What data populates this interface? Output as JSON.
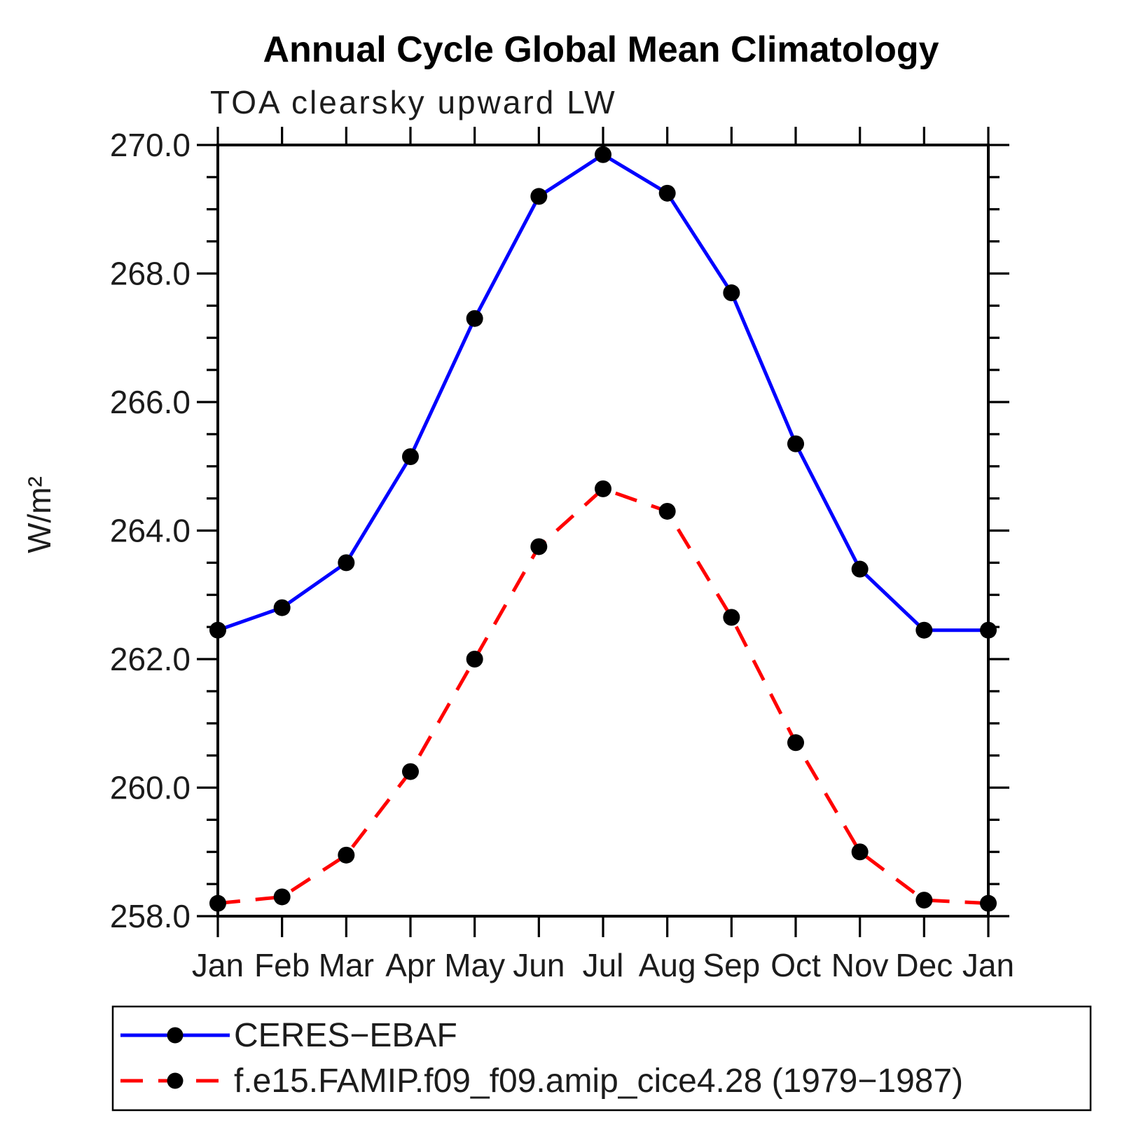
{
  "title": "Annual Cycle Global Mean Climatology",
  "subtitle": "TOA clearsky upward LW",
  "chart_data": {
    "type": "line",
    "x_categories": [
      "Jan",
      "Feb",
      "Mar",
      "Apr",
      "May",
      "Jun",
      "Jul",
      "Aug",
      "Sep",
      "Oct",
      "Nov",
      "Dec",
      "Jan"
    ],
    "xlabel": "",
    "ylabel": "W/m²",
    "ylim": [
      258.0,
      270.0
    ],
    "y_major_ticks": [
      258.0,
      260.0,
      262.0,
      264.0,
      266.0,
      268.0,
      270.0
    ],
    "y_tick_labels": [
      "258.0",
      "260.0",
      "262.0",
      "264.0",
      "266.0",
      "268.0",
      "270.0"
    ],
    "y_minor_step": 0.5,
    "grid": false,
    "frame": "box",
    "legend_position": "bottom-left-box",
    "marker_color": "#000000",
    "axis_color": "#000000",
    "series": [
      {
        "name": "CERES−EBAF",
        "color": "#0000ff",
        "style": "solid",
        "marker": "circle",
        "values": [
          262.45,
          262.8,
          263.5,
          265.15,
          267.3,
          269.2,
          269.85,
          269.25,
          267.7,
          265.35,
          263.4,
          262.45,
          262.45
        ]
      },
      {
        "name": "f.e15.FAMIP.f09_f09.amip_cice4.28 (1979−1987)",
        "color": "#ff0000",
        "style": "dashed",
        "marker": "circle",
        "values": [
          258.2,
          258.3,
          258.95,
          260.25,
          262.0,
          263.75,
          264.65,
          264.3,
          262.65,
          260.7,
          259.0,
          258.25,
          258.2
        ]
      }
    ]
  }
}
